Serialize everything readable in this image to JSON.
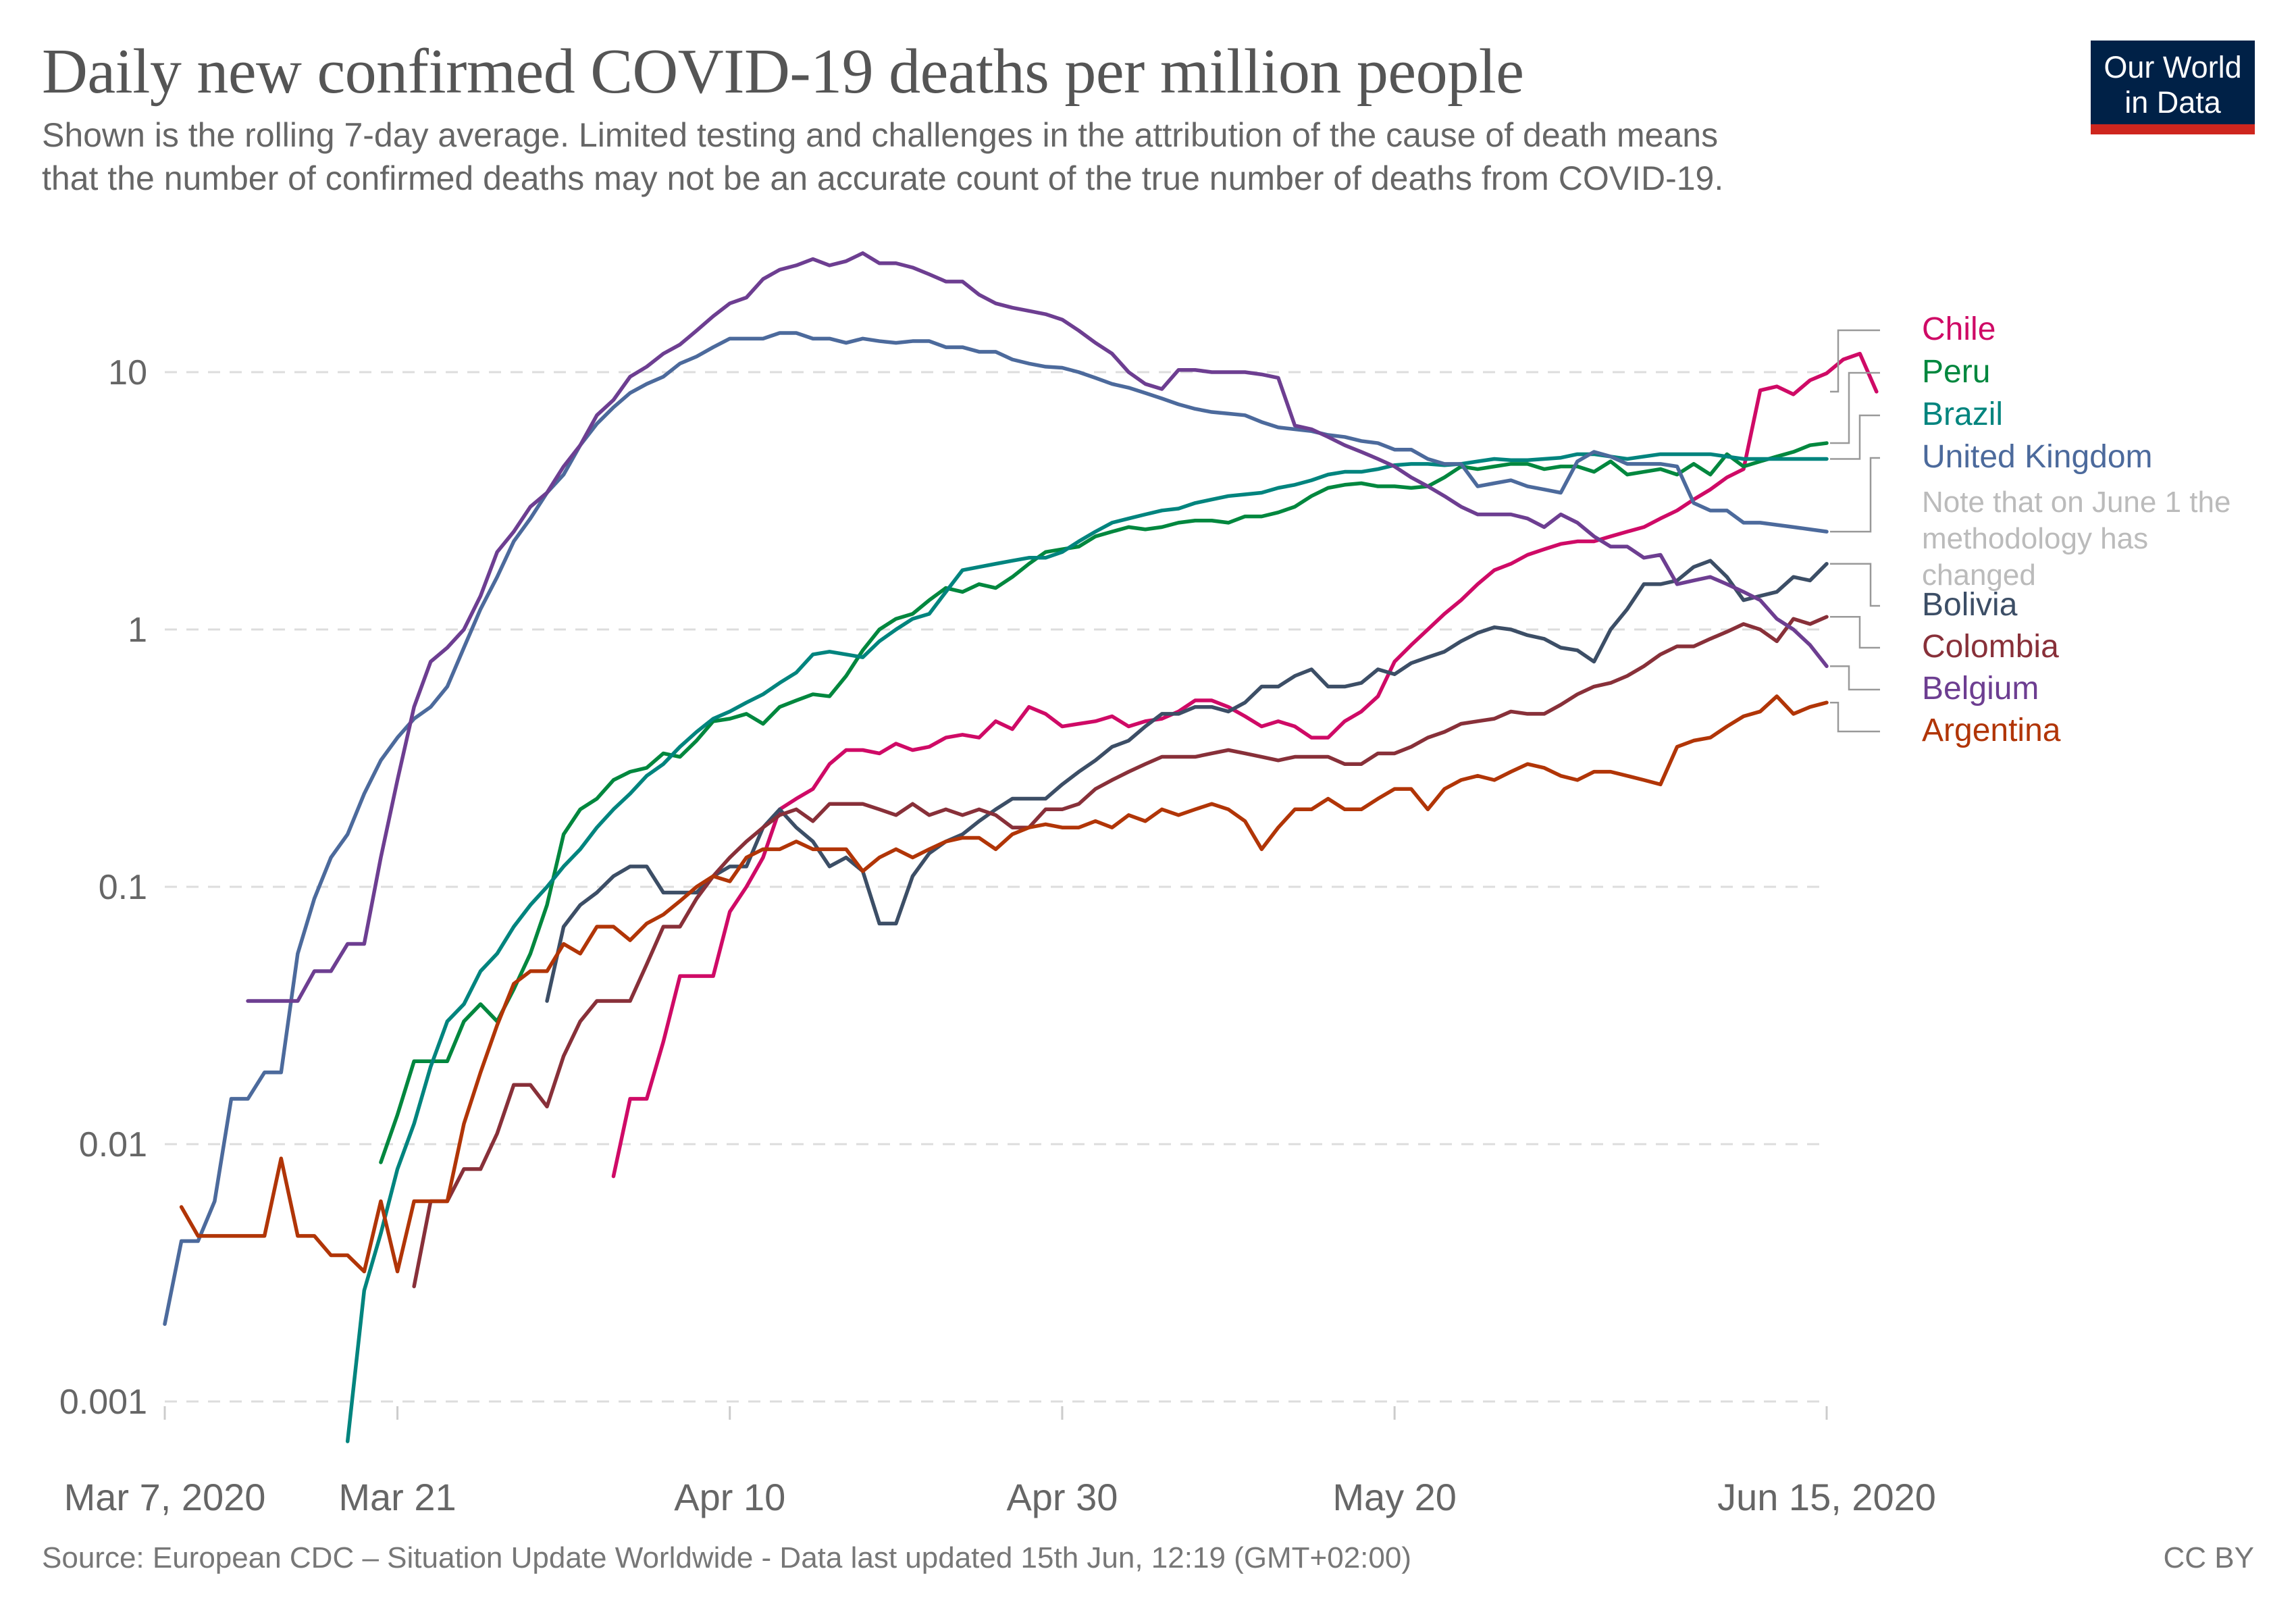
{
  "header": {
    "title": "Daily new confirmed COVID-19 deaths per million people",
    "subtitle_line1": "Shown is the rolling 7-day average. Limited testing and challenges in the attribution of the cause of death means",
    "subtitle_line2": "that the number of confirmed deaths may not be an accurate count of the true number of deaths from COVID-19.",
    "logo_line1": "Our World",
    "logo_line2": "in Data"
  },
  "footer": {
    "source": "Source: European CDC – Situation Update Worldwide - Data last updated 15th Jun, 12:19 (GMT+02:00)",
    "license": "CC BY"
  },
  "colors": {
    "logo_bg": "#002147",
    "logo_bar": "#CE261E"
  },
  "chart_data": {
    "type": "line",
    "title": "Daily new confirmed COVID-19 deaths per million people",
    "xlabel": "",
    "ylabel": "",
    "yscale": "log",
    "ylim": [
      0.0007,
      30
    ],
    "y_ticks": [
      {
        "value": 10,
        "label": "10"
      },
      {
        "value": 1,
        "label": "1"
      },
      {
        "value": 0.1,
        "label": "0.1"
      },
      {
        "value": 0.01,
        "label": "0.01"
      },
      {
        "value": 0.001,
        "label": "0.001"
      }
    ],
    "x_start_date": "2020-03-07",
    "x_range_days": [
      0,
      100
    ],
    "x_ticks": [
      {
        "day": 0,
        "label": "Mar 7, 2020"
      },
      {
        "day": 14,
        "label": "Mar 21"
      },
      {
        "day": 34,
        "label": "Apr 10"
      },
      {
        "day": 54,
        "label": "Apr 30"
      },
      {
        "day": 74,
        "label": "May 20"
      },
      {
        "day": 100,
        "label": "Jun 15, 2020"
      }
    ],
    "grid": true,
    "legend": "right-inline",
    "annotation": {
      "series": "United Kingdom",
      "text_lines": [
        "Note that on June 1 the",
        "methodology has",
        "changed"
      ]
    },
    "series": [
      {
        "name": "Chile",
        "color": "#CF0A66",
        "start_day": 27,
        "values": [
          0.0075,
          0.015,
          0.015,
          0.025,
          0.045,
          0.045,
          0.045,
          0.08,
          0.1,
          0.13,
          0.2,
          0.22,
          0.24,
          0.3,
          0.34,
          0.34,
          0.33,
          0.36,
          0.34,
          0.35,
          0.38,
          0.39,
          0.38,
          0.44,
          0.41,
          0.5,
          0.47,
          0.42,
          0.43,
          0.44,
          0.46,
          0.42,
          0.44,
          0.45,
          0.48,
          0.53,
          0.53,
          0.5,
          0.46,
          0.42,
          0.44,
          0.42,
          0.38,
          0.38,
          0.44,
          0.48,
          0.55,
          0.75,
          0.87,
          1.0,
          1.15,
          1.3,
          1.5,
          1.7,
          1.8,
          1.95,
          2.05,
          2.15,
          2.2,
          2.2,
          2.3,
          2.4,
          2.5,
          2.7,
          2.9,
          3.2,
          3.5,
          3.9,
          4.2,
          8.5,
          8.8,
          8.2,
          9.3,
          9.9,
          11.2,
          11.8,
          8.4
        ]
      },
      {
        "name": "Peru",
        "color": "#00873E",
        "start_day": 13,
        "values": [
          0.0085,
          0.013,
          0.021,
          0.021,
          0.021,
          0.03,
          0.035,
          0.03,
          0.04,
          0.055,
          0.085,
          0.16,
          0.2,
          0.22,
          0.26,
          0.28,
          0.29,
          0.33,
          0.32,
          0.37,
          0.44,
          0.45,
          0.47,
          0.43,
          0.5,
          0.53,
          0.56,
          0.55,
          0.66,
          0.83,
          1.0,
          1.1,
          1.15,
          1.3,
          1.45,
          1.4,
          1.5,
          1.45,
          1.6,
          1.8,
          2.0,
          2.05,
          2.1,
          2.3,
          2.4,
          2.5,
          2.45,
          2.5,
          2.6,
          2.65,
          2.65,
          2.6,
          2.75,
          2.75,
          2.85,
          3.0,
          3.3,
          3.55,
          3.65,
          3.7,
          3.6,
          3.6,
          3.55,
          3.6,
          3.9,
          4.3,
          4.2,
          4.3,
          4.4,
          4.4,
          4.2,
          4.3,
          4.3,
          4.1,
          4.5,
          4.0,
          4.1,
          4.2,
          4.0,
          4.4,
          4.0,
          4.8,
          4.3,
          4.5,
          4.7,
          4.9,
          5.2,
          5.3
        ]
      },
      {
        "name": "Brazil",
        "color": "#00847E",
        "start_day": 11,
        "values": [
          0.0007,
          0.0027,
          0.0045,
          0.008,
          0.012,
          0.02,
          0.03,
          0.035,
          0.047,
          0.055,
          0.07,
          0.085,
          0.1,
          0.12,
          0.14,
          0.17,
          0.2,
          0.23,
          0.27,
          0.3,
          0.35,
          0.4,
          0.45,
          0.48,
          0.52,
          0.56,
          0.62,
          0.68,
          0.8,
          0.82,
          0.8,
          0.78,
          0.9,
          1.0,
          1.1,
          1.15,
          1.4,
          1.7,
          1.75,
          1.8,
          1.85,
          1.9,
          1.9,
          2.0,
          2.2,
          2.4,
          2.6,
          2.7,
          2.8,
          2.9,
          2.95,
          3.1,
          3.2,
          3.3,
          3.35,
          3.4,
          3.55,
          3.65,
          3.8,
          4.0,
          4.1,
          4.1,
          4.2,
          4.35,
          4.4,
          4.4,
          4.35,
          4.4,
          4.5,
          4.6,
          4.55,
          4.55,
          4.6,
          4.65,
          4.8,
          4.8,
          4.7,
          4.6,
          4.7,
          4.8,
          4.8,
          4.8,
          4.8,
          4.7,
          4.6,
          4.6,
          4.6,
          4.6,
          4.6,
          4.6
        ]
      },
      {
        "name": "United Kingdom",
        "color": "#4C6A9C",
        "start_day": 0,
        "values": [
          0.002,
          0.0042,
          0.0042,
          0.006,
          0.015,
          0.015,
          0.019,
          0.019,
          0.055,
          0.09,
          0.13,
          0.16,
          0.23,
          0.31,
          0.38,
          0.45,
          0.5,
          0.6,
          0.85,
          1.2,
          1.6,
          2.2,
          2.7,
          3.4,
          4.0,
          5.2,
          6.3,
          7.3,
          8.3,
          9.0,
          9.6,
          10.8,
          11.5,
          12.5,
          13.5,
          13.5,
          13.5,
          14.2,
          14.2,
          13.5,
          13.5,
          13.0,
          13.5,
          13.2,
          13.0,
          13.2,
          13.2,
          12.5,
          12.5,
          12.0,
          12.0,
          11.2,
          10.8,
          10.5,
          10.4,
          10.0,
          9.5,
          9.0,
          8.7,
          8.3,
          7.9,
          7.5,
          7.2,
          7.0,
          6.9,
          6.8,
          6.4,
          6.1,
          6.0,
          5.9,
          5.7,
          5.6,
          5.4,
          5.3,
          5.0,
          5.0,
          4.6,
          4.4,
          4.4,
          3.6,
          3.7,
          3.8,
          3.6,
          3.5,
          3.4,
          4.5,
          4.9,
          4.7,
          4.4,
          4.4,
          4.4,
          4.3,
          3.1,
          2.9,
          2.9,
          2.6,
          2.6,
          2.55,
          2.5,
          2.45,
          2.4
        ]
      },
      {
        "name": "Bolivia",
        "color": "#3C4E66",
        "start_day": 23,
        "values": [
          0.036,
          0.07,
          0.085,
          0.095,
          0.11,
          0.12,
          0.12,
          0.095,
          0.095,
          0.095,
          0.11,
          0.12,
          0.12,
          0.17,
          0.2,
          0.17,
          0.15,
          0.12,
          0.13,
          0.115,
          0.072,
          0.072,
          0.11,
          0.135,
          0.15,
          0.16,
          0.18,
          0.2,
          0.22,
          0.22,
          0.22,
          0.25,
          0.28,
          0.31,
          0.35,
          0.37,
          0.42,
          0.47,
          0.47,
          0.5,
          0.5,
          0.48,
          0.52,
          0.6,
          0.6,
          0.66,
          0.7,
          0.6,
          0.6,
          0.62,
          0.7,
          0.67,
          0.74,
          0.78,
          0.82,
          0.9,
          0.97,
          1.02,
          1.0,
          0.95,
          0.92,
          0.85,
          0.83,
          0.75,
          1.0,
          1.2,
          1.5,
          1.5,
          1.55,
          1.75,
          1.85,
          1.6,
          1.3,
          1.35,
          1.4,
          1.6,
          1.55,
          1.8
        ]
      },
      {
        "name": "Colombia",
        "color": "#883039",
        "start_day": 15,
        "values": [
          0.0028,
          0.006,
          0.006,
          0.008,
          0.008,
          0.011,
          0.017,
          0.017,
          0.014,
          0.022,
          0.03,
          0.036,
          0.036,
          0.036,
          0.05,
          0.07,
          0.07,
          0.09,
          0.11,
          0.13,
          0.15,
          0.17,
          0.19,
          0.2,
          0.18,
          0.21,
          0.21,
          0.21,
          0.2,
          0.19,
          0.21,
          0.19,
          0.2,
          0.19,
          0.2,
          0.19,
          0.17,
          0.17,
          0.2,
          0.2,
          0.21,
          0.24,
          0.26,
          0.28,
          0.3,
          0.32,
          0.32,
          0.32,
          0.33,
          0.34,
          0.33,
          0.32,
          0.31,
          0.32,
          0.32,
          0.32,
          0.3,
          0.3,
          0.33,
          0.33,
          0.35,
          0.38,
          0.4,
          0.43,
          0.44,
          0.45,
          0.48,
          0.47,
          0.47,
          0.51,
          0.56,
          0.6,
          0.62,
          0.66,
          0.72,
          0.8,
          0.86,
          0.86,
          0.92,
          0.98,
          1.05,
          1.0,
          0.9,
          1.1,
          1.05,
          1.12
        ]
      },
      {
        "name": "Belgium",
        "color": "#6D3E91",
        "start_day": 5,
        "values": [
          0.036,
          0.036,
          0.036,
          0.036,
          0.047,
          0.047,
          0.06,
          0.06,
          0.13,
          0.26,
          0.5,
          0.75,
          0.85,
          1.0,
          1.35,
          2.0,
          2.4,
          3.0,
          3.4,
          4.3,
          5.2,
          6.8,
          7.8,
          9.6,
          10.5,
          11.8,
          12.8,
          14.5,
          16.5,
          18.5,
          19.5,
          23,
          25,
          26,
          27.5,
          26,
          27,
          29,
          26.5,
          26.5,
          25.5,
          24,
          22.5,
          22.5,
          20,
          18.5,
          17.8,
          17.3,
          16.8,
          16.0,
          14.5,
          13.0,
          11.8,
          10.0,
          9.0,
          8.6,
          10.2,
          10.2,
          10.0,
          10.0,
          10.0,
          9.8,
          9.5,
          6.2,
          6.0,
          5.6,
          5.2,
          4.9,
          4.6,
          4.3,
          3.9,
          3.6,
          3.3,
          3.0,
          2.8,
          2.8,
          2.8,
          2.7,
          2.5,
          2.8,
          2.6,
          2.3,
          2.1,
          2.1,
          1.9,
          1.95,
          1.5,
          1.55,
          1.6,
          1.5,
          1.4,
          1.3,
          1.1,
          1.0,
          0.87,
          0.72
        ]
      },
      {
        "name": "Argentina",
        "color": "#B13507",
        "start_day": 1,
        "values": [
          0.0057,
          0.0044,
          0.0044,
          0.0044,
          0.0044,
          0.0044,
          0.0088,
          0.0044,
          0.0044,
          0.0037,
          0.0037,
          0.0032,
          0.006,
          0.0032,
          0.006,
          0.006,
          0.006,
          0.012,
          0.019,
          0.029,
          0.042,
          0.047,
          0.047,
          0.06,
          0.055,
          0.07,
          0.07,
          0.062,
          0.072,
          0.078,
          0.088,
          0.1,
          0.11,
          0.105,
          0.13,
          0.14,
          0.14,
          0.15,
          0.14,
          0.14,
          0.14,
          0.115,
          0.13,
          0.14,
          0.13,
          0.14,
          0.15,
          0.155,
          0.155,
          0.14,
          0.16,
          0.17,
          0.175,
          0.17,
          0.17,
          0.18,
          0.17,
          0.19,
          0.18,
          0.2,
          0.19,
          0.2,
          0.21,
          0.2,
          0.18,
          0.14,
          0.17,
          0.2,
          0.2,
          0.22,
          0.2,
          0.2,
          0.22,
          0.24,
          0.24,
          0.2,
          0.24,
          0.26,
          0.27,
          0.26,
          0.28,
          0.3,
          0.29,
          0.27,
          0.26,
          0.28,
          0.28,
          0.27,
          0.26,
          0.25,
          0.35,
          0.37,
          0.38,
          0.42,
          0.46,
          0.48,
          0.55,
          0.47,
          0.5,
          0.52
        ]
      }
    ]
  }
}
